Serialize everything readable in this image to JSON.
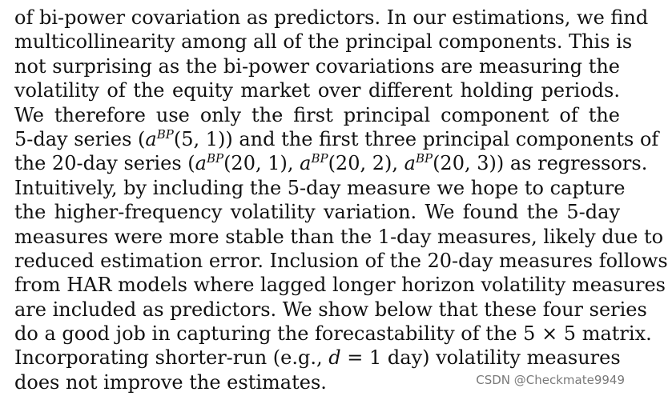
{
  "paragraph": {
    "lines": [
      [
        {
          "t": "of bi-power covariation as predictors. In our estimations, we find"
        }
      ],
      [
        {
          "t": "multicollinearity among all of the principal components. This is"
        }
      ],
      [
        {
          "t": "not surprising as the bi-power covariations are measuring the"
        }
      ],
      [
        {
          "t": "volatility of the equity market over different holding periods."
        }
      ],
      [
        {
          "t": "We therefore use only the first principal component of the"
        }
      ],
      [
        {
          "t": "5-day series ("
        },
        {
          "t": "a",
          "s": "it"
        },
        {
          "t": "BP",
          "s": "sup"
        },
        {
          "t": "(5, 1)) and the first three principal components of"
        }
      ],
      [
        {
          "t": "the 20-day series ("
        },
        {
          "t": "a",
          "s": "it"
        },
        {
          "t": "BP",
          "s": "sup"
        },
        {
          "t": "(20, 1), "
        },
        {
          "t": "a",
          "s": "it"
        },
        {
          "t": "BP",
          "s": "sup"
        },
        {
          "t": "(20, 2), "
        },
        {
          "t": "a",
          "s": "it"
        },
        {
          "t": "BP",
          "s": "sup"
        },
        {
          "t": "(20, 3)) as regressors."
        }
      ],
      [
        {
          "t": "Intuitively, by including the 5-day measure we hope to capture"
        }
      ],
      [
        {
          "t": "the higher-frequency volatility variation. We found the 5-day"
        }
      ],
      [
        {
          "t": "measures were more stable than the 1-day measures, likely due to"
        }
      ],
      [
        {
          "t": "reduced estimation error. Inclusion of the 20-day measures follows"
        }
      ],
      [
        {
          "t": "from HAR models where lagged longer horizon volatility measures"
        }
      ],
      [
        {
          "t": "are included as predictors. We show below that these four series"
        }
      ],
      [
        {
          "t": "do a good job in capturing the forecastability of the 5 × 5 matrix."
        }
      ],
      [
        {
          "t": "Incorporating shorter-run (e.g., "
        },
        {
          "t": "d",
          "s": "it"
        },
        {
          "t": " = 1 day) volatility measures"
        }
      ],
      [
        {
          "t": "does not improve the estimates."
        }
      ]
    ]
  },
  "watermark": "CSDN @Checkmate9949"
}
